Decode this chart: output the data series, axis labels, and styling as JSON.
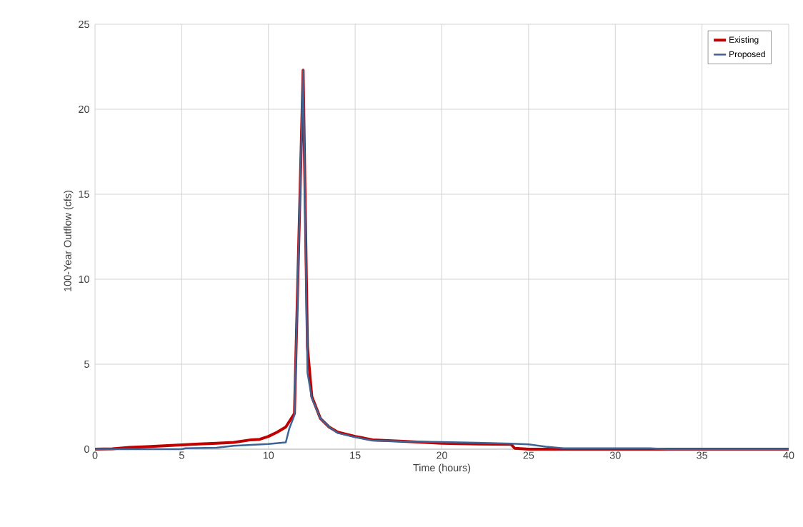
{
  "chart_data": {
    "type": "line",
    "xlabel": "Time (hours)",
    "ylabel": "100-Year Outflow (cfs)",
    "xlim": [
      0,
      40
    ],
    "ylim": [
      0,
      25
    ],
    "xticks": [
      0,
      5,
      10,
      15,
      20,
      25,
      30,
      35,
      40
    ],
    "yticks": [
      0,
      5,
      10,
      15,
      20,
      25
    ],
    "grid": true,
    "legend": "top right",
    "marker": "none",
    "line_style": "solid",
    "series": [
      {
        "name": "Existing",
        "color": "#c00000",
        "x": [
          0,
          1,
          2,
          3,
          4,
          5,
          6,
          7,
          8,
          9,
          9.5,
          10,
          10.5,
          11,
          11.5,
          12,
          12.25,
          12.5,
          13,
          13.5,
          14,
          15,
          16,
          18,
          20,
          22,
          24,
          24.2,
          25,
          30,
          40
        ],
        "values": [
          0,
          0.02,
          0.1,
          0.15,
          0.2,
          0.25,
          0.3,
          0.35,
          0.4,
          0.55,
          0.58,
          0.75,
          1.0,
          1.3,
          2.1,
          22.3,
          6,
          3.1,
          1.8,
          1.3,
          1.0,
          0.75,
          0.55,
          0.45,
          0.35,
          0.3,
          0.28,
          0.05,
          0,
          0,
          0
        ]
      },
      {
        "name": "Proposed",
        "color": "#3d6495",
        "x": [
          0,
          5,
          5.2,
          7,
          8,
          10,
          11,
          11.2,
          11.5,
          12,
          12.25,
          12.5,
          13,
          13.5,
          14,
          15,
          16,
          18,
          20,
          22,
          24,
          25,
          26,
          27,
          32,
          33,
          40
        ],
        "values": [
          0,
          0,
          0.05,
          0.08,
          0.2,
          0.3,
          0.4,
          1.2,
          2.0,
          22.3,
          4.5,
          3.0,
          1.8,
          1.3,
          0.95,
          0.7,
          0.5,
          0.45,
          0.42,
          0.38,
          0.33,
          0.28,
          0.15,
          0.05,
          0.05,
          0,
          0
        ]
      }
    ]
  }
}
